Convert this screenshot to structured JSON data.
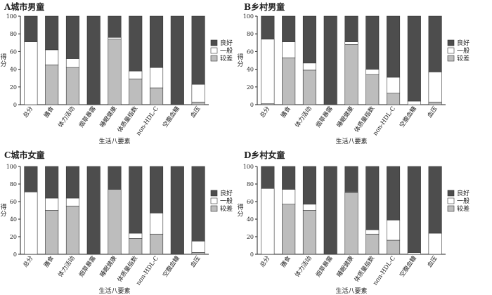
{
  "legend": [
    {
      "key": "good",
      "label": "良好",
      "color": "#4d4d4d"
    },
    {
      "key": "avg",
      "label": "一般",
      "color": "#ffffff"
    },
    {
      "key": "poor",
      "label": "较差",
      "color": "#bdbdbd"
    }
  ],
  "chart_data": [
    {
      "type": "bar",
      "stacked": true,
      "title": "A城市男童",
      "xlabel": "生活八要素",
      "ylabel": "得分",
      "ylim": [
        0,
        100
      ],
      "yticks": [
        0,
        20,
        40,
        60,
        80,
        100
      ],
      "categories": [
        "总分",
        "膳食",
        "体力活动",
        "烟草暴露",
        "睡眠健康",
        "体质量指数",
        "non-HDL-C",
        "空腹血糖",
        "血压"
      ],
      "series": [
        {
          "name": "较差",
          "values": [
            0,
            45,
            42,
            0,
            74,
            29,
            19,
            0,
            3
          ]
        },
        {
          "name": "一般",
          "values": [
            71,
            17,
            10,
            0,
            2,
            9,
            23,
            0,
            20
          ]
        },
        {
          "name": "良好",
          "values": [
            29,
            38,
            48,
            100,
            24,
            62,
            58,
            100,
            77
          ]
        }
      ]
    },
    {
      "type": "bar",
      "stacked": true,
      "title": "B乡村男童",
      "xlabel": "生活八要素",
      "ylabel": "得分",
      "ylim": [
        0,
        100
      ],
      "yticks": [
        0,
        20,
        40,
        60,
        80,
        100
      ],
      "categories": [
        "总分",
        "膳食",
        "体力活动",
        "烟草暴露",
        "睡眠健康",
        "体质量指数",
        "non-HDL-C",
        "空腹血糖",
        "血压"
      ],
      "series": [
        {
          "name": "较差",
          "values": [
            1,
            53,
            39,
            0,
            68,
            34,
            13,
            0,
            3
          ]
        },
        {
          "name": "一般",
          "values": [
            73,
            18,
            8,
            0,
            3,
            6,
            18,
            4,
            34
          ]
        },
        {
          "name": "良好",
          "values": [
            26,
            29,
            53,
            100,
            29,
            60,
            69,
            96,
            63
          ]
        }
      ]
    },
    {
      "type": "bar",
      "stacked": true,
      "title": "C城市女童",
      "xlabel": "生活八要素",
      "ylabel": "得分",
      "ylim": [
        0,
        100
      ],
      "yticks": [
        0,
        20,
        40,
        60,
        80,
        100
      ],
      "categories": [
        "总分",
        "膳食",
        "体力活动",
        "烟草暴露",
        "睡眠健康",
        "体质量指数",
        "non-HDL-C",
        "空腹血糖",
        "血压"
      ],
      "series": [
        {
          "name": "较差",
          "values": [
            0,
            50,
            55,
            0,
            74,
            18,
            23,
            0,
            2
          ]
        },
        {
          "name": "一般",
          "values": [
            71,
            14,
            9,
            0,
            0,
            6,
            24,
            0,
            13
          ]
        },
        {
          "name": "良好",
          "values": [
            29,
            36,
            36,
            100,
            26,
            76,
            53,
            100,
            85
          ]
        }
      ]
    },
    {
      "type": "bar",
      "stacked": true,
      "title": "D乡村女童",
      "xlabel": "生活八要素",
      "ylabel": "得分",
      "ylim": [
        0,
        100
      ],
      "yticks": [
        0,
        20,
        40,
        60,
        80,
        100
      ],
      "categories": [
        "总分",
        "膳食",
        "体力活动",
        "烟草暴露",
        "睡眠健康",
        "体质量指数",
        "non-HDL-C",
        "空腹血糖",
        "血压"
      ],
      "series": [
        {
          "name": "较差",
          "values": [
            0,
            57,
            50,
            0,
            70,
            23,
            16,
            0,
            0
          ]
        },
        {
          "name": "一般",
          "values": [
            75,
            17,
            7,
            0,
            1,
            5,
            23,
            2,
            24
          ]
        },
        {
          "name": "良好",
          "values": [
            25,
            26,
            43,
            100,
            29,
            72,
            61,
            98,
            76
          ]
        }
      ]
    }
  ]
}
